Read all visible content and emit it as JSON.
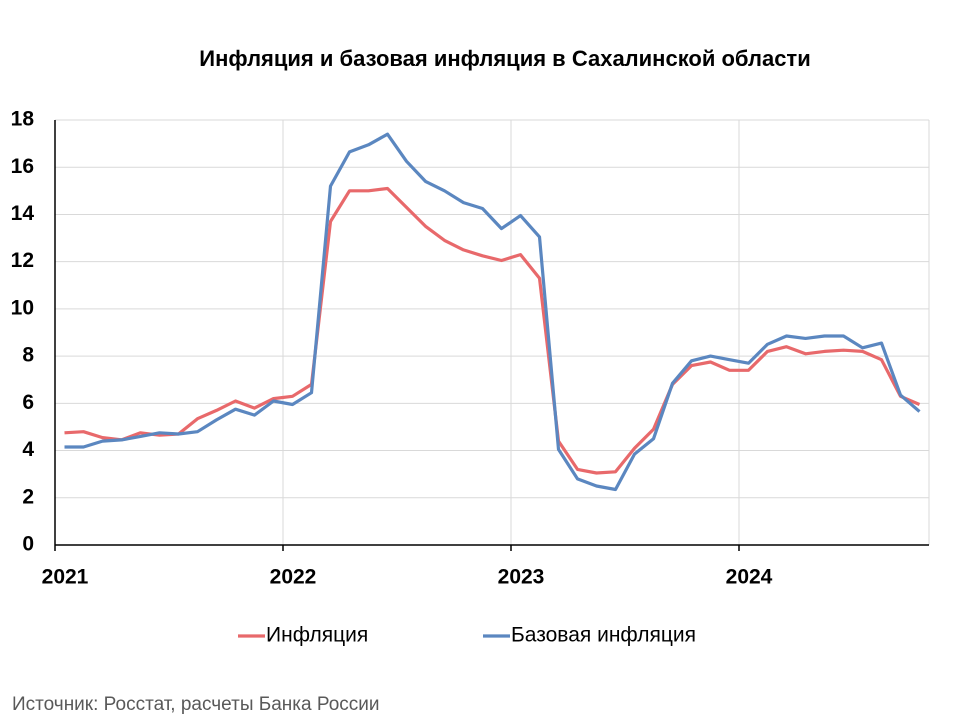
{
  "chart_data": {
    "type": "line",
    "title": "Инфляция и базовая инфляция в Сахалинской области",
    "source": "Источник: Росстат, расчеты Банка России",
    "categories": [
      "2021",
      null,
      null,
      null,
      null,
      null,
      null,
      null,
      null,
      null,
      null,
      null,
      "2022",
      null,
      null,
      null,
      null,
      null,
      null,
      null,
      null,
      null,
      null,
      null,
      "2023",
      null,
      null,
      null,
      null,
      null,
      null,
      null,
      null,
      null,
      null,
      null,
      "2024",
      null,
      null,
      null,
      null,
      null,
      null,
      null,
      null,
      null
    ],
    "series": [
      {
        "name": "Инфляция",
        "color": "#e8696b",
        "values": [
          4.75,
          4.8,
          4.55,
          4.45,
          4.75,
          4.65,
          4.7,
          5.35,
          5.7,
          6.1,
          5.8,
          6.2,
          6.3,
          6.8,
          13.7,
          15.0,
          15.0,
          15.1,
          14.3,
          13.5,
          12.9,
          12.5,
          12.25,
          12.05,
          12.3,
          11.3,
          4.4,
          3.2,
          3.05,
          3.1,
          4.1,
          4.9,
          6.8,
          7.6,
          7.75,
          7.4,
          7.4,
          8.2,
          8.4,
          8.1,
          8.2,
          8.25,
          8.2,
          7.85,
          6.3,
          5.95
        ]
      },
      {
        "name": "Базовая инфляция",
        "color": "#5b87c0",
        "values": [
          4.15,
          4.15,
          4.4,
          4.45,
          4.6,
          4.75,
          4.7,
          4.8,
          5.3,
          5.75,
          5.5,
          6.1,
          5.95,
          6.45,
          15.2,
          16.65,
          16.95,
          17.4,
          16.25,
          15.4,
          15.0,
          14.5,
          14.25,
          13.4,
          13.95,
          13.05,
          4.05,
          2.8,
          2.5,
          2.35,
          3.85,
          4.5,
          6.85,
          7.8,
          8.0,
          7.85,
          7.7,
          8.5,
          8.85,
          8.75,
          8.85,
          8.85,
          8.35,
          8.55,
          6.35,
          5.65
        ]
      }
    ],
    "ylim": [
      0,
      18
    ],
    "yticks": [
      0,
      2,
      4,
      6,
      8,
      10,
      12,
      14,
      16,
      18
    ],
    "grid": true,
    "legend": "bottom"
  }
}
